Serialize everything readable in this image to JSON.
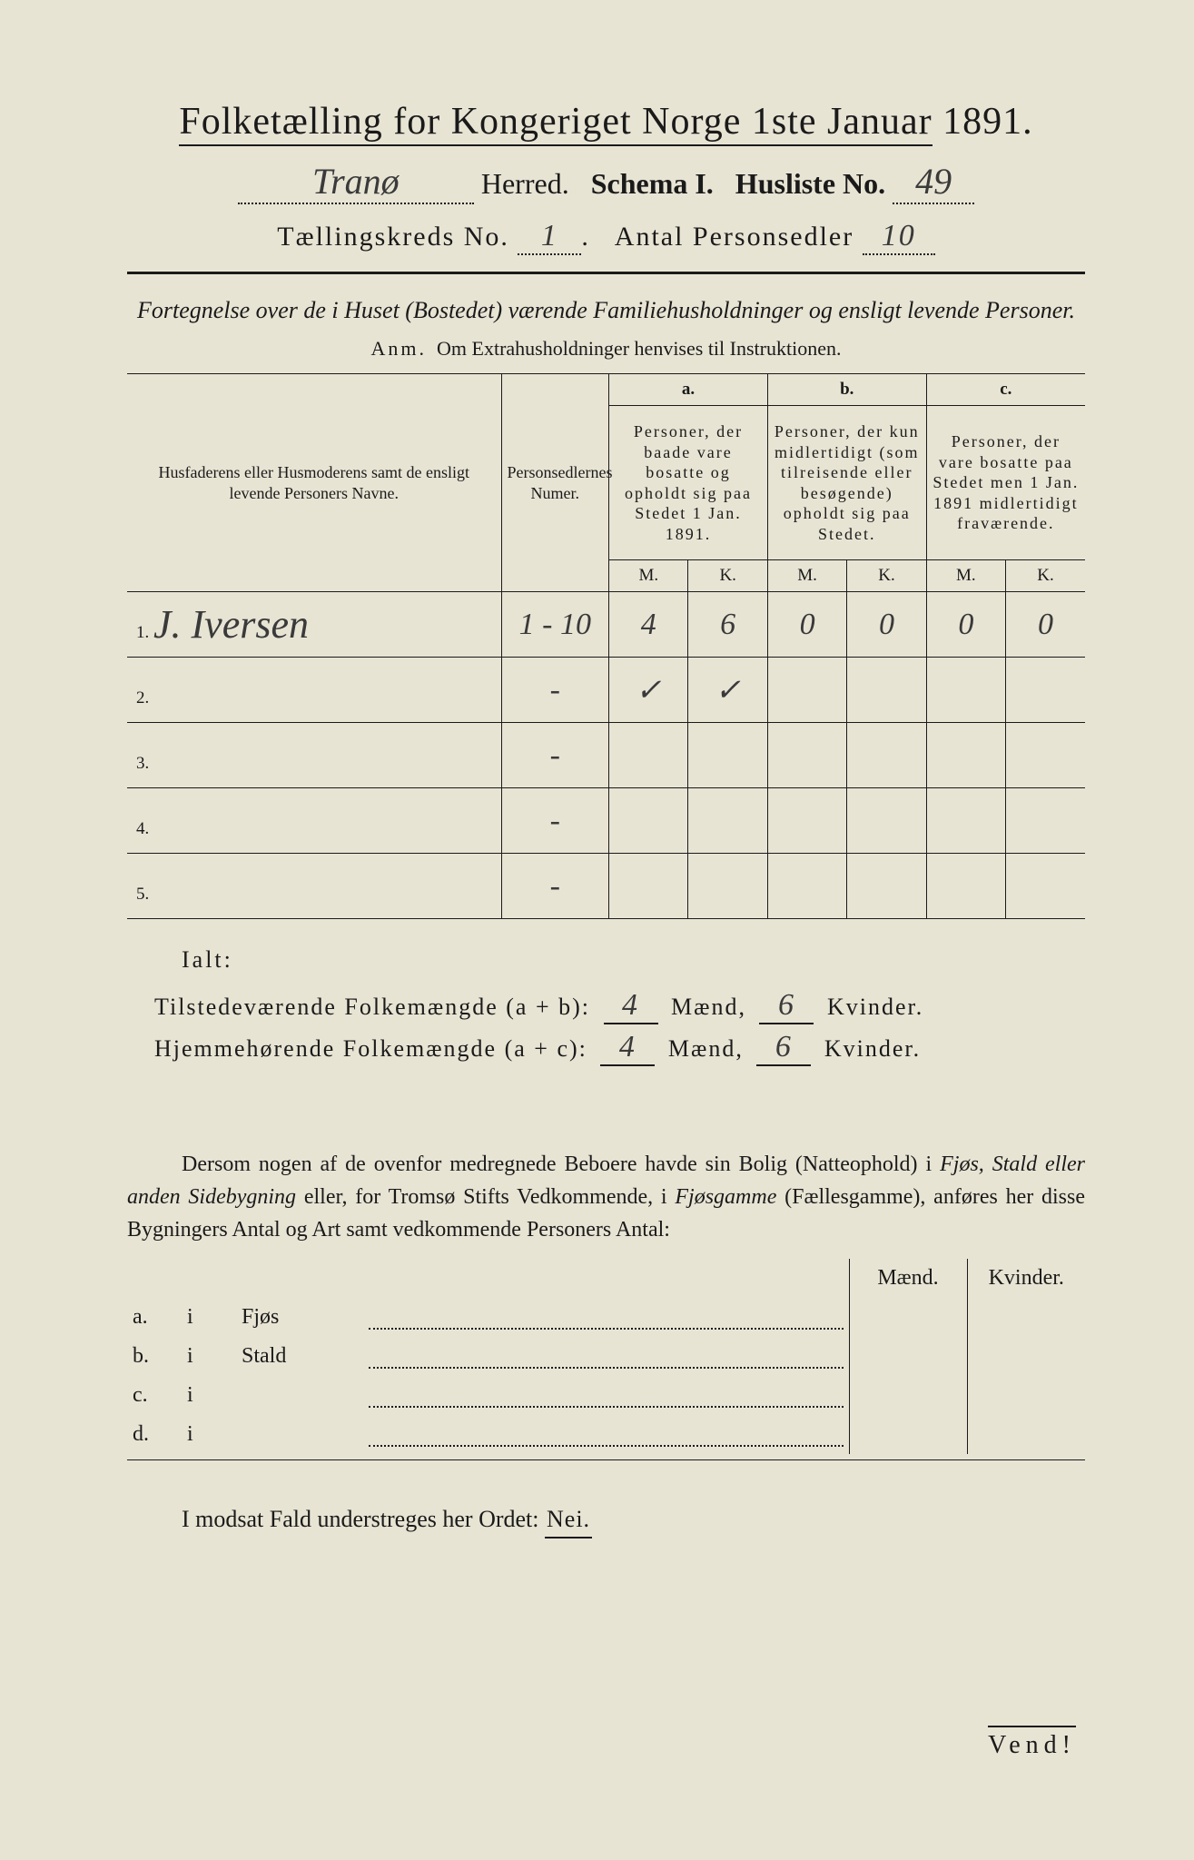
{
  "title_pre": "Folketælling for Kongeriget Norge 1ste Januar",
  "title_year": "1891.",
  "line2": {
    "herred_value": "Tranø",
    "herred_label": "Herred.",
    "schema_label": "Schema I.",
    "husliste_label": "Husliste No.",
    "husliste_value": "49"
  },
  "line3": {
    "kreds_label": "Tællingskreds No.",
    "kreds_value": "1",
    "antal_label": "Antal Personsedler",
    "antal_value": "10"
  },
  "subtitle": "Fortegnelse over de i Huset (Bostedet) værende Familiehusholdninger og ensligt levende Personer.",
  "anm_label": "Anm.",
  "anm_text": "Om Extrahusholdninger henvises til Instruktionen.",
  "table": {
    "col_name_header": "Husfaderens eller Husmoderens samt de ensligt levende Personers Navne.",
    "col_num_header": "Personsedlernes Numer.",
    "group_a_label": "a.",
    "group_a_header": "Personer, der baade vare bosatte og opholdt sig paa Stedet 1 Jan. 1891.",
    "group_b_label": "b.",
    "group_b_header": "Personer, der kun midlertidigt (som tilreisende eller besøgende) opholdt sig paa Stedet.",
    "group_c_label": "c.",
    "group_c_header": "Personer, der vare bosatte paa Stedet men 1 Jan. 1891 midlertidigt fraværende.",
    "m": "M.",
    "k": "K.",
    "rows": [
      {
        "n": "1.",
        "name": "J. Iversen",
        "num": "1 - 10",
        "aM": "4",
        "aK": "6",
        "bM": "0",
        "bK": "0",
        "cM": "0",
        "cK": "0"
      },
      {
        "n": "2.",
        "name": "",
        "num": "-",
        "aM": "✓",
        "aK": "✓",
        "bM": "",
        "bK": "",
        "cM": "",
        "cK": ""
      },
      {
        "n": "3.",
        "name": "",
        "num": "-",
        "aM": "",
        "aK": "",
        "bM": "",
        "bK": "",
        "cM": "",
        "cK": ""
      },
      {
        "n": "4.",
        "name": "",
        "num": "-",
        "aM": "",
        "aK": "",
        "bM": "",
        "bK": "",
        "cM": "",
        "cK": ""
      },
      {
        "n": "5.",
        "name": "",
        "num": "-",
        "aM": "",
        "aK": "",
        "bM": "",
        "bK": "",
        "cM": "",
        "cK": ""
      }
    ]
  },
  "ialt": "Ialt:",
  "totals": {
    "line1_label": "Tilstedeværende Folkemængde (a + b):",
    "line1_m": "4",
    "line1_k": "6",
    "line2_label": "Hjemmehørende Folkemængde (a + c):",
    "line2_m": "4",
    "line2_k": "6",
    "maend": "Mænd,",
    "kvinder": "Kvinder."
  },
  "paragraph": "Dersom nogen af de ovenfor medregnede Beboere havde sin Bolig (Natteophold) i Fjøs, Stald eller anden Sidebygning eller, for Tromsø Stifts Vedkommende, i Fjøsgamme (Fællesgamme), anføres her disse Bygningers Antal og Art samt vedkommende Personers Antal:",
  "side": {
    "maend": "Mænd.",
    "kvinder": "Kvinder.",
    "rows": [
      {
        "a": "a.",
        "i": "i",
        "b": "Fjøs"
      },
      {
        "a": "b.",
        "i": "i",
        "b": "Stald"
      },
      {
        "a": "c.",
        "i": "i",
        "b": ""
      },
      {
        "a": "d.",
        "i": "i",
        "b": ""
      }
    ]
  },
  "nei_line_pre": "I modsat Fald understreges her Ordet:",
  "nei": "Nei.",
  "vend": "Vend!",
  "colors": {
    "page_bg": "#e8e4d4",
    "ink": "#1a1a1a",
    "hand_ink": "#3a3a3a",
    "outer_bg": "#2a2a2a"
  }
}
